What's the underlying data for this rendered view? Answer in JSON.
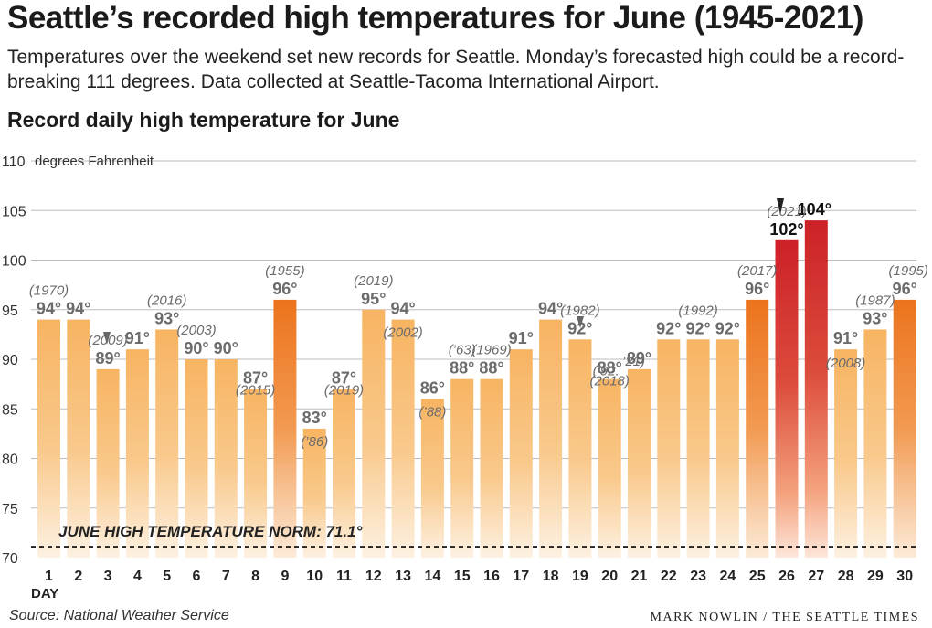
{
  "header": {
    "title": "Seattle’s recorded high temperatures for June (1945-2021)",
    "subtitle": "Temperatures over the weekend set new records for Seattle. Monday’s forecasted high could be a record-breaking 111 degrees. Data collected at Seattle-Tacoma International Airport.",
    "chart_title": "Record daily high temperature for June"
  },
  "footer": {
    "source": "Source: National Weather Service",
    "credit": "MARK NOWLIN / THE SEATTLE TIMES"
  },
  "colors": {
    "bar_light": "#f7b866",
    "bar_orange": "#ee7a22",
    "bar_red": "#d12a2a",
    "grid": "#bdbdbd",
    "label_gray": "#6b6b6b"
  },
  "chart_data": {
    "type": "bar",
    "title": "Record daily high temperature for June",
    "xlabel": "DAY",
    "ylabel": "",
    "unit_label": "degrees Fahrenheit",
    "ylim": [
      70,
      110
    ],
    "yticks": [
      70,
      75,
      80,
      85,
      90,
      95,
      100,
      105,
      110
    ],
    "grid": true,
    "categories": [
      "1",
      "2",
      "3",
      "4",
      "5",
      "6",
      "7",
      "8",
      "9",
      "10",
      "11",
      "12",
      "13",
      "14",
      "15",
      "16",
      "17",
      "18",
      "19",
      "20",
      "21",
      "22",
      "23",
      "24",
      "25",
      "26",
      "27",
      "28",
      "29",
      "30"
    ],
    "values": [
      94,
      94,
      89,
      91,
      93,
      90,
      90,
      87,
      96,
      83,
      87,
      95,
      94,
      86,
      88,
      88,
      91,
      94,
      92,
      88,
      89,
      92,
      92,
      92,
      96,
      102,
      104,
      91,
      93,
      96
    ],
    "value_labels": [
      "94°",
      "94°",
      "89°",
      "91°",
      "93°",
      "90°",
      "90°",
      "87°",
      "96°",
      "83°",
      "87°",
      "95°",
      "94°",
      "86°",
      "88°",
      "88°",
      "91°",
      "94°",
      "92°",
      "88°",
      "89°",
      "92°",
      "92°",
      "92°",
      "96°",
      "102°",
      "104°",
      "91°",
      "93°",
      "96°"
    ],
    "bar_styles": [
      "light",
      "light",
      "light",
      "light",
      "light",
      "light",
      "light",
      "light",
      "orange",
      "light",
      "light",
      "light",
      "light",
      "light",
      "light",
      "light",
      "light",
      "light",
      "light",
      "light",
      "light",
      "light",
      "light",
      "light",
      "orange",
      "red",
      "red",
      "light",
      "light",
      "orange"
    ],
    "year_labels": [
      {
        "day": "1",
        "text": "(1970)"
      },
      {
        "day": "3",
        "text": "(2009)"
      },
      {
        "day": "5",
        "text": "(2016)"
      },
      {
        "day": "6",
        "text": "(2003)"
      },
      {
        "day": "8",
        "text": "(2015)"
      },
      {
        "day": "9",
        "text": "(1955)"
      },
      {
        "day": "10",
        "text": "(’86)"
      },
      {
        "day": "11",
        "text": "(2019)"
      },
      {
        "day": "12",
        "text": "(2019)"
      },
      {
        "day": "13",
        "text": "(2002)"
      },
      {
        "day": "14",
        "text": "(’88)"
      },
      {
        "day": "15",
        "text": "(’63)"
      },
      {
        "day": "16",
        "text": "(1969)"
      },
      {
        "day": "19",
        "text": "(1982)"
      },
      {
        "day": "20",
        "text": "(’92."
      },
      {
        "day": "20",
        "text": "(2018)"
      },
      {
        "day": "21",
        "text": "’21)"
      },
      {
        "day": "23",
        "text": "(1992)"
      },
      {
        "day": "25",
        "text": "(2017)"
      },
      {
        "day": "26",
        "text": "(2021)"
      },
      {
        "day": "28",
        "text": "(2008)"
      },
      {
        "day": "29",
        "text": "(1987)"
      },
      {
        "day": "30",
        "text": "(1995)"
      }
    ],
    "norm": {
      "value": 71.1,
      "label": "JUNE HIGH TEMPERATURE NORM: 71.1°"
    }
  }
}
